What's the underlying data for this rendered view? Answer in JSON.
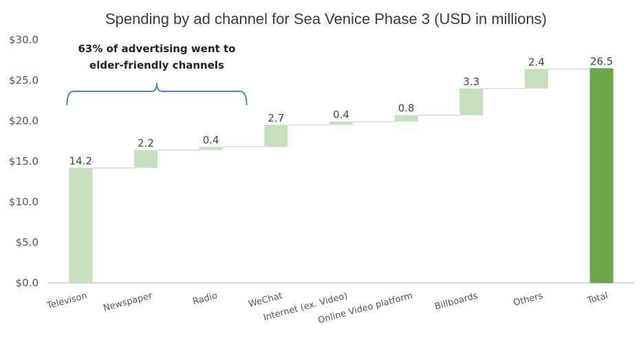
{
  "chart_data": {
    "type": "bar",
    "subtype": "waterfall",
    "title": "Spending by ad channel for Sea Venice Phase 3 (USD in millions)",
    "categories": [
      "Televison",
      "Newspaper",
      "Radio",
      "WeChat",
      "Internet (ex. Video)",
      "Online Video platform",
      "Billboards",
      "Others",
      "Total"
    ],
    "values": [
      14.2,
      2.2,
      0.4,
      2.7,
      0.4,
      0.8,
      3.3,
      2.4,
      26.5
    ],
    "value_labels": [
      "14.2",
      "2.2",
      "0.4",
      "2.7",
      "0.4",
      "0.8",
      "3.3",
      "2.4",
      "26.5"
    ],
    "is_total": [
      false,
      false,
      false,
      false,
      false,
      false,
      false,
      false,
      true
    ],
    "ylim": [
      0,
      30
    ],
    "yticks": [
      0,
      5,
      10,
      15,
      20,
      25,
      30
    ],
    "ytick_labels": [
      "$0.0",
      "$5.0",
      "$10.0",
      "$15.0",
      "$20.0",
      "$25.0",
      "$30.0"
    ],
    "xlabel": "",
    "ylabel": "",
    "grid": false,
    "legend": "none",
    "annotation": {
      "lines": [
        "63% of advertising went to",
        "elder-friendly channels"
      ],
      "span": [
        "Televison",
        "Radio"
      ]
    },
    "colors": {
      "increment": "#c6dfbc",
      "total": "#6aa548",
      "connector": "#c8c8c8",
      "bracket": "#4a86d0",
      "axis": "#b0b0b0"
    }
  }
}
